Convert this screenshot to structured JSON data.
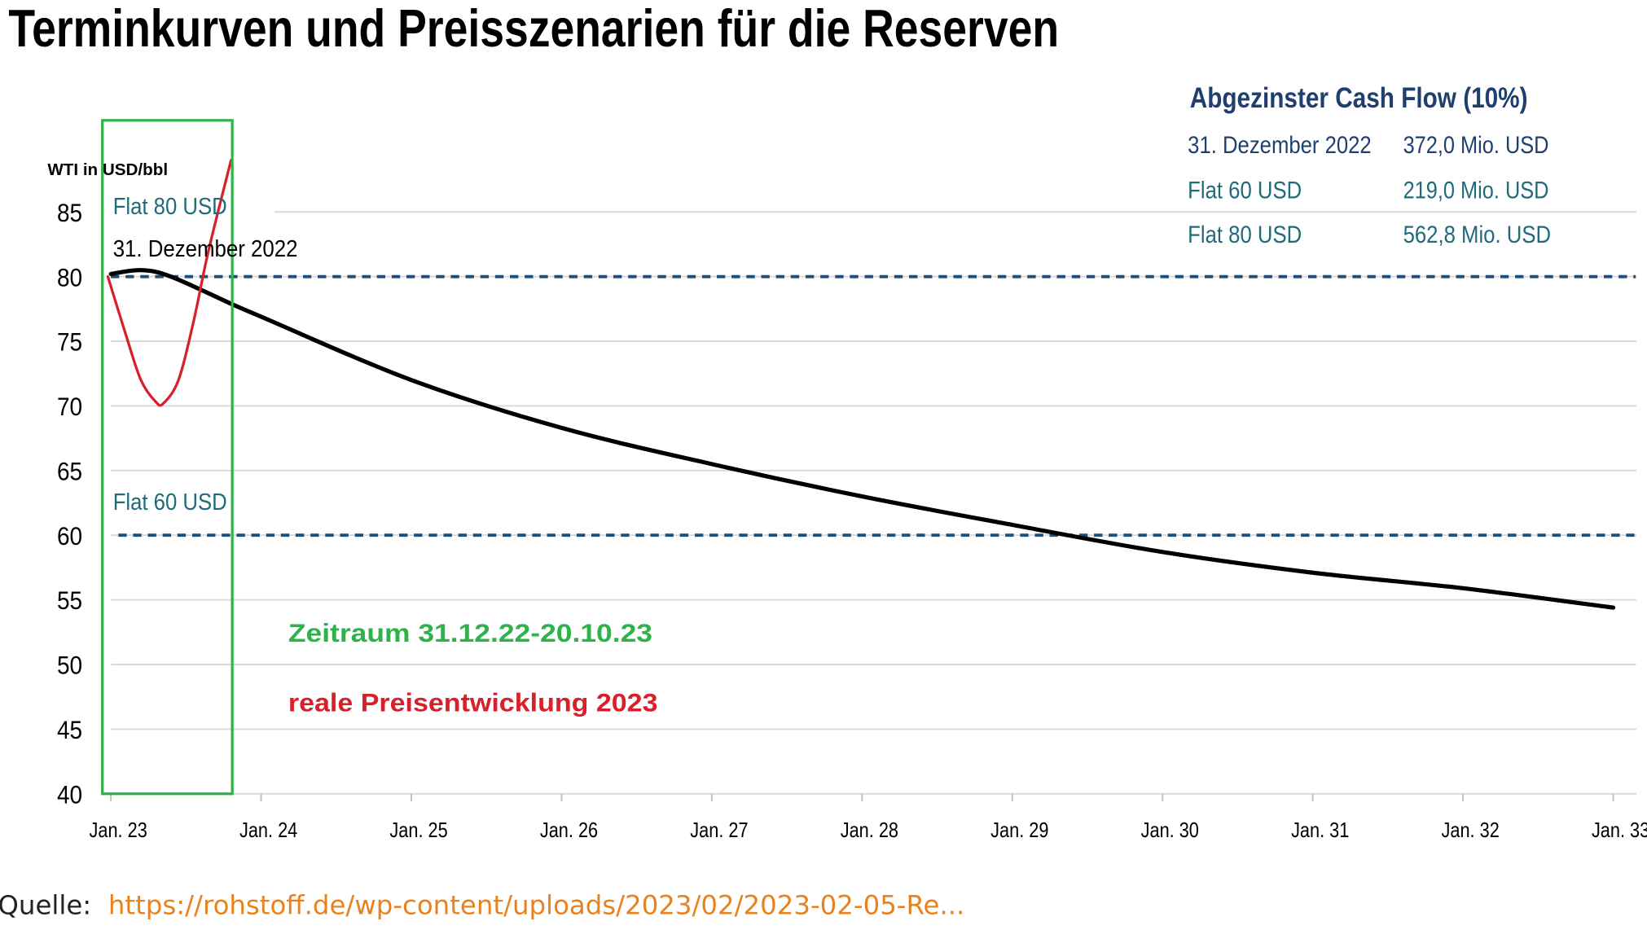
{
  "title": "Terminkurven und Preisszenarien für die Reserven",
  "source": {
    "label": "Quelle:",
    "link": "https://rohstoff.de/wp-content/uploads/2023/02/2023-02-05-Re..."
  },
  "cash_flow_box": {
    "heading": "Abgezinster Cash Flow (10%)",
    "rows": [
      {
        "label": "31. Dezember 2022",
        "value": "372,0 Mio. USD"
      },
      {
        "label": "Flat 60 USD",
        "value": "219,0 Mio. USD"
      },
      {
        "label": "Flat 80 USD",
        "value": "562,8 Mio. USD"
      }
    ]
  },
  "annotations": {
    "period": "Zeitraum 31.12.22-20.10.23",
    "real": "reale Preisentwicklung 2023",
    "flat80": "Flat 80 USD",
    "flat60": "Flat 60 USD",
    "curve_label": "31. Dezember 2022"
  },
  "colors": {
    "forward_curve": "#000000",
    "flat_lines": "#1f4e79",
    "real_price": "#d9202a",
    "period_box": "#2db34a",
    "teal_text": "#1f6b7a",
    "navy_text": "#1f3f6e",
    "link": "#e8821e"
  },
  "chart_data": {
    "type": "line",
    "ylabel": "WTI in USD/bbl",
    "ylim": [
      40,
      88
    ],
    "yticks": [
      40,
      45,
      50,
      55,
      60,
      65,
      70,
      75,
      80,
      85
    ],
    "xticks": [
      "Jan. 23",
      "Jan. 24",
      "Jan. 25",
      "Jan. 26",
      "Jan. 27",
      "Jan. 28",
      "Jan. 29",
      "Jan. 30",
      "Jan. 31",
      "Jan. 32",
      "Jan. 33"
    ],
    "xlim": [
      2023.0,
      2033.0
    ],
    "grid": "horizontal",
    "series": [
      {
        "name": "31. Dezember 2022",
        "style": "solid",
        "x": [
          2023.0,
          2023.2,
          2023.4,
          2023.8,
          2024.0,
          2025.0,
          2026.0,
          2027.0,
          2028.0,
          2029.0,
          2030.0,
          2031.0,
          2032.0,
          2033.0
        ],
        "y": [
          80.2,
          80.5,
          80.0,
          77.9,
          76.9,
          72.0,
          68.3,
          65.5,
          63.0,
          60.8,
          58.7,
          57.1,
          55.9,
          54.4
        ]
      },
      {
        "name": "Flat 80 USD",
        "style": "dashed",
        "x": [
          2023.0,
          2033.15
        ],
        "y": [
          80,
          80
        ]
      },
      {
        "name": "Flat 60 USD",
        "style": "dashed",
        "x": [
          2023.05,
          2033.15
        ],
        "y": [
          60,
          60
        ]
      },
      {
        "name": "reale Preisentwicklung 2023",
        "style": "solid",
        "x": [
          2022.98,
          2023.1,
          2023.2,
          2023.3,
          2023.35,
          2023.45,
          2023.55,
          2023.65,
          2023.8
        ],
        "y": [
          80,
          75.5,
          72.0,
          70.3,
          70.2,
          72.0,
          76.5,
          82.0,
          89.0
        ]
      }
    ],
    "period_box": {
      "from": "31.12.22",
      "to": "20.10.23"
    }
  }
}
